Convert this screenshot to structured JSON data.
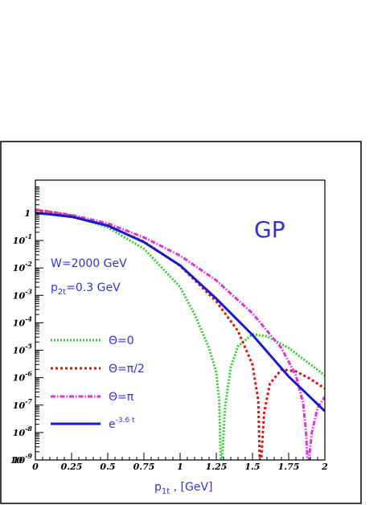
{
  "chart_data": {
    "type": "line",
    "annotation": "GP",
    "params": {
      "energy": "W=2000 GeV",
      "p2t_label": "p",
      "p2t_sub": "2t",
      "p2t_value": "=0.3 GeV"
    },
    "xlabel": {
      "text": "p",
      "sub": "1t",
      "units": " , [GeV]"
    },
    "xlim": [
      0,
      2
    ],
    "ylim_log10": [
      -9,
      1.2
    ],
    "yscale": "log",
    "x_ticks": [
      "0",
      "0.25",
      "0.5",
      "0.75",
      "1",
      "1.25",
      "1.5",
      "1.75",
      "2"
    ],
    "y_ticks": [
      {
        "base": "1",
        "exp": ""
      },
      {
        "base": "10",
        "exp": "-1"
      },
      {
        "base": "10",
        "exp": "-2"
      },
      {
        "base": "10",
        "exp": "-3"
      },
      {
        "base": "10",
        "exp": "-4"
      },
      {
        "base": "10",
        "exp": "-5"
      },
      {
        "base": "10",
        "exp": "-6"
      },
      {
        "base": "10",
        "exp": "-7"
      },
      {
        "base": "10",
        "exp": "-8"
      },
      {
        "base": "10",
        "exp": "-9"
      },
      {
        "base": "10",
        "exp": ""
      }
    ],
    "grid": false,
    "legend_position": "bottom-left",
    "series": [
      {
        "name": "Θ=0",
        "name_base": "Θ=0",
        "name_exp": "",
        "color": "#33cc33",
        "dash": "2,2",
        "x": [
          0,
          0.25,
          0.5,
          0.75,
          1.0,
          1.1,
          1.2,
          1.25,
          1.27,
          1.28,
          1.29,
          1.31,
          1.35,
          1.4,
          1.5,
          1.6,
          1.75,
          2.0
        ],
        "y": [
          1.3,
          0.8,
          0.3,
          0.05,
          0.002,
          0.0002,
          1.2e-05,
          1.5e-06,
          1.5e-07,
          1e-09,
          1e-09,
          8e-08,
          2.5e-06,
          1.4e-05,
          3.8e-05,
          3.2e-05,
          1.2e-05,
          1.2e-06
        ]
      },
      {
        "name": "Θ=π/2",
        "name_base": "Θ=π/2",
        "name_exp": "",
        "color": "#dd1111",
        "dash": "3,3",
        "x": [
          0,
          0.25,
          0.5,
          0.75,
          1.0,
          1.25,
          1.4,
          1.5,
          1.54,
          1.55,
          1.56,
          1.58,
          1.62,
          1.7,
          1.8,
          1.9,
          2.0
        ],
        "y": [
          1.3,
          0.8,
          0.34,
          0.09,
          0.012,
          0.0006,
          5e-05,
          3e-06,
          1.5e-07,
          1e-09,
          1e-09,
          5e-08,
          6e-07,
          2e-06,
          1.7e-06,
          9e-07,
          4e-07
        ]
      },
      {
        "name": "Θ=π",
        "name_base": "Θ=π",
        "name_exp": "",
        "color": "#dd33dd",
        "dash": "6,2,1.5,2",
        "x": [
          0,
          0.25,
          0.5,
          0.75,
          1.0,
          1.25,
          1.5,
          1.7,
          1.8,
          1.85,
          1.87,
          1.88,
          1.89,
          1.91,
          1.95,
          2.0
        ],
        "y": [
          1.35,
          0.85,
          0.42,
          0.13,
          0.028,
          0.0035,
          0.00022,
          1.2e-05,
          1.2e-06,
          1.2e-07,
          1e-08,
          1e-09,
          1e-09,
          1e-08,
          8e-08,
          2e-07
        ]
      },
      {
        "name": "e⁻³·⁶ ᵗ",
        "name_base": "e",
        "name_exp": "-3.6 t",
        "color": "#1a1acc",
        "dash": "",
        "x": [
          0,
          0.1,
          0.25,
          0.5,
          0.75,
          1.0,
          1.25,
          1.5,
          1.75,
          2.0
        ],
        "y": [
          1.0,
          0.9,
          0.73,
          0.35,
          0.087,
          0.0124,
          0.00076,
          3.6e-05,
          1.1e-06,
          6e-08
        ]
      }
    ]
  }
}
